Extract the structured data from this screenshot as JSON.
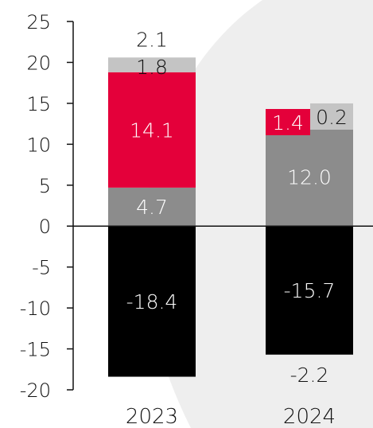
{
  "chart_data": {
    "type": "bar",
    "stacked": true,
    "categories": [
      "2023",
      "2024"
    ],
    "ylim": [
      -20,
      25
    ],
    "yticks": [
      25,
      20,
      15,
      10,
      5,
      0,
      -5,
      -10,
      -15,
      -20
    ],
    "grid": false,
    "legend": "none",
    "series": [
      {
        "values": [
          4.7,
          12.0
        ],
        "labels": [
          "4.7",
          "12.0"
        ],
        "color": "#8c8c8c",
        "label_color": "#ffffff"
      },
      {
        "values": [
          14.1,
          1.4
        ],
        "labels": [
          "14.1",
          "1.4"
        ],
        "color": "#e4003a",
        "label_color": "#ffffff"
      },
      {
        "values": [
          1.8,
          0.2
        ],
        "labels": [
          "1.8",
          "0.2"
        ],
        "color": "#c4c4c4",
        "label_color": "#111111"
      },
      {
        "values": [
          -18.4,
          -15.7
        ],
        "labels": [
          "-18.4",
          "-15.7"
        ],
        "color": "#000000",
        "label_color": "#ffffff"
      }
    ],
    "annotations": [
      {
        "category": "2023",
        "text": "2.1",
        "position": "above"
      },
      {
        "category": "2024",
        "text": "-2.2",
        "position": "below"
      }
    ],
    "colors": {
      "background": "#ffffff",
      "axis": "#111111",
      "swoosh": "#eeeeee"
    }
  }
}
